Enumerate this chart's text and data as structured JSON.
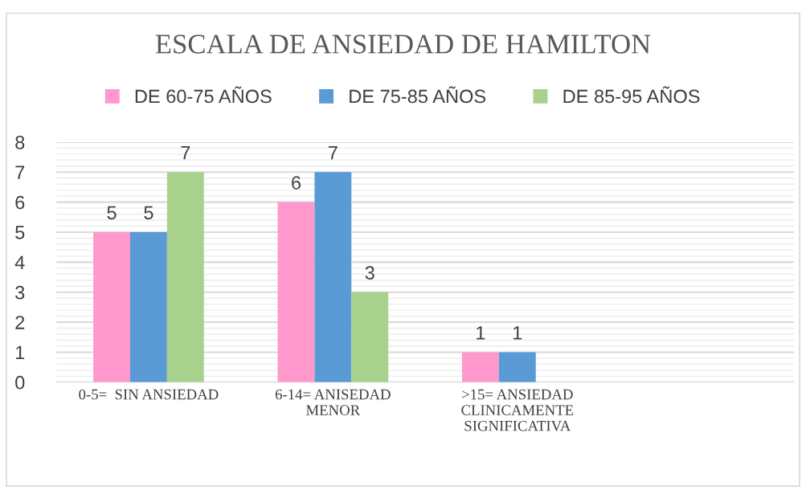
{
  "chart_data": {
    "type": "bar",
    "title": "ESCALA DE ANSIEDAD DE HAMILTON",
    "categories": [
      "0-5=  SIN ANSIEDAD",
      "6-14= ANISEDAD\nMENOR",
      ">15= ANSIEDAD\nCLINICAMENTE\nSIGNIFICATIVA",
      null
    ],
    "series": [
      {
        "name": "DE 60-75 AÑOS",
        "color": "#ff99cc",
        "values": [
          5,
          6,
          1,
          null
        ]
      },
      {
        "name": "DE 75-85 AÑOS",
        "color": "#5b9bd5",
        "values": [
          5,
          7,
          1,
          null
        ]
      },
      {
        "name": "DE 85-95 AÑOS",
        "color": "#a9d18e",
        "values": [
          7,
          3,
          null,
          null
        ]
      }
    ],
    "ylim": [
      0,
      8
    ],
    "yticks": [
      0,
      1,
      2,
      3,
      4,
      5,
      6,
      7,
      8
    ],
    "grid": "y",
    "legend": "top",
    "data_labels": true
  }
}
